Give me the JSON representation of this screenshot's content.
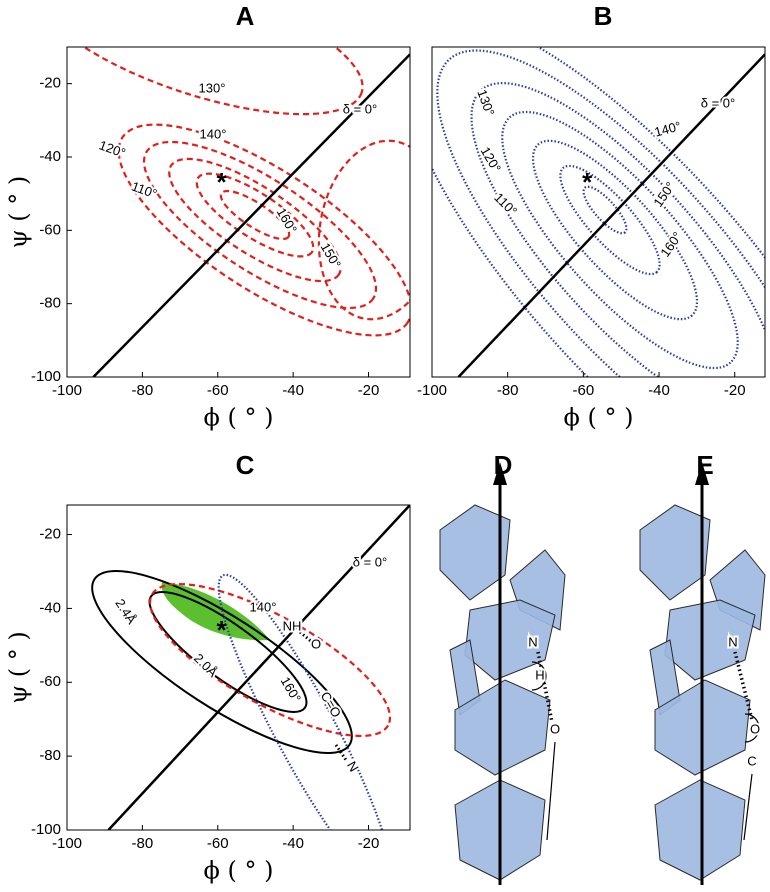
{
  "chart_data": [
    {
      "type": "contour",
      "title": "A",
      "xlabel": "ϕ ( ° )",
      "ylabel": "ψ ( ° )",
      "xlim": [
        -100,
        -9
      ],
      "ylim": [
        -100,
        -10
      ],
      "xticks": [
        -100,
        -80,
        -60,
        -40,
        -20
      ],
      "yticks": [
        -100,
        -80,
        -60,
        -40,
        -20
      ],
      "line": {
        "x": [
          -93,
          -9
        ],
        "y": [
          -100,
          -12
        ]
      },
      "line_label": "δ = 0°",
      "marker": {
        "x": -59,
        "y": -46,
        "symbol": "*"
      },
      "contour_labels": [
        "130°",
        "140°",
        "120°",
        "110°",
        "160°",
        "150°"
      ]
    },
    {
      "type": "contour",
      "title": "B",
      "xlabel": "ϕ ( ° )",
      "xlim": [
        -100,
        -12
      ],
      "ylim": [
        -100,
        -10
      ],
      "xticks": [
        -100,
        -80,
        -60,
        -40,
        -20
      ],
      "line": {
        "x": [
          -93,
          -12
        ],
        "y": [
          -100,
          -12
        ]
      },
      "line_label": "δ = 0°",
      "marker": {
        "x": -59,
        "y": -46,
        "symbol": "*"
      },
      "contour_labels": [
        "130°",
        "120°",
        "110°",
        "140°",
        "150°",
        "160°"
      ]
    },
    {
      "type": "contour",
      "title": "C",
      "xlabel": "ϕ ( ° )",
      "ylabel": "ψ ( ° )",
      "xlim": [
        -100,
        -9
      ],
      "ylim": [
        -100,
        -12
      ],
      "xticks": [
        -100,
        -80,
        -60,
        -40,
        -20
      ],
      "yticks": [
        -100,
        -80,
        -60,
        -40,
        -20
      ],
      "line": {
        "x": [
          -89,
          -9
        ],
        "y": [
          -100,
          -12
        ]
      },
      "line_label": "δ = 0°",
      "marker": {
        "x": -59,
        "y": -45,
        "symbol": "*"
      },
      "contour_labels": [
        "140°",
        "NH",
        "O",
        "160°",
        "C=O",
        "N",
        "2.4Å",
        "2.0Å"
      ]
    }
  ],
  "figures": [
    {
      "title": "D",
      "atoms": [
        "N",
        "H",
        "O"
      ]
    },
    {
      "title": "E",
      "atoms": [
        "N",
        "O",
        "C"
      ]
    }
  ]
}
